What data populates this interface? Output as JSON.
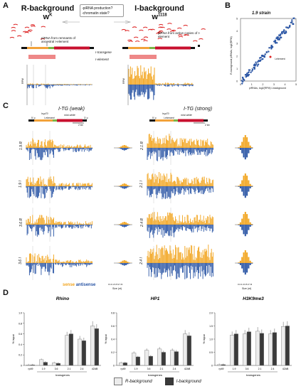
{
  "panelA": {
    "label": "A",
    "r_title": "R-background",
    "r_sub": "w",
    "r_sup": "K",
    "i_title": "I-background",
    "i_sub": "w",
    "i_sup": "1118",
    "question_line1": "-piRNA production?",
    "question_line2": "-chromatin state?",
    "r_note": "piRNA from remnants of ancestral I-element",
    "i_note": "piRNA from active copies of I-element",
    "transgene_label": "I-transgene",
    "element_label": "I-element",
    "rpm": "RPM"
  },
  "panelB": {
    "label": "B",
    "title": "1.9 strain",
    "ylabel": "R-background piRNAs, log2(RPM)",
    "xlabel": "piRNAs, log2(RPM) I-background",
    "annotation": "I-element",
    "ticks": [
      "0",
      "1",
      "2",
      "3",
      "4",
      "5"
    ]
  },
  "panelC": {
    "label": "C",
    "weak_title": "I-TG (weak)",
    "strong_title": "I-TG (strong)",
    "hsp70": "hsp70",
    "five_p": "5' p",
    "i_element": "I-element",
    "mini_white": "mini-white",
    "three_p": "3' p",
    "scale": "2 kb",
    "weak_rows": [
      "1.9 R",
      "1.9 I",
      "3.6 R",
      "3.6 I"
    ],
    "strong_rows": [
      "2.1 R",
      "2.1 I",
      "2.4 R",
      "2.4 I"
    ],
    "size_label": "Size (nt)",
    "size_ticks": "19 21 23 25 27 29",
    "rpm": "RPM",
    "legend_sense": "sense",
    "legend_antisense": "antisense"
  },
  "panelD": {
    "label": "D",
    "ylabel": "% input",
    "xlabel": "transgenes",
    "legend_r": "R-background",
    "legend_i": "I-background",
    "colors": {
      "r": "#ececec",
      "i": "#3a3a3a"
    },
    "chart_data": [
      {
        "type": "bar",
        "title": "Rhino",
        "categories": [
          "rp49",
          "1.9",
          "3.6",
          "2.1",
          "2.4",
          "42AB"
        ],
        "ylim": [
          0,
          1.0
        ],
        "yticks": [
          "0",
          "0.2",
          "0.4",
          "0.6",
          "0.8",
          "1.0"
        ],
        "series": [
          {
            "name": "R-background",
            "values": [
              0.01,
              0.11,
              0.05,
              0.57,
              0.5,
              0.75
            ]
          },
          {
            "name": "I-background",
            "values": [
              0.01,
              0.06,
              0.04,
              0.6,
              0.47,
              0.7
            ]
          }
        ]
      },
      {
        "type": "bar",
        "title": "HP1",
        "categories": [
          "rp49",
          "1.9",
          "3.6",
          "2.1",
          "2.4",
          "42AB"
        ],
        "ylim": [
          0,
          0.8
        ],
        "yticks": [
          "0",
          "0.2",
          "0.4",
          "0.6",
          "0.8"
        ],
        "series": [
          {
            "name": "R-background",
            "values": [
              0.04,
              0.19,
              0.23,
              0.25,
              0.23,
              0.48
            ]
          },
          {
            "name": "I-background",
            "values": [
              0.04,
              0.13,
              0.14,
              0.2,
              0.21,
              0.45
            ]
          }
        ]
      },
      {
        "type": "bar",
        "title": "H3K9me3",
        "categories": [
          "rp49",
          "1.9",
          "3.6",
          "2.1",
          "2.4",
          "42AB"
        ],
        "ylim": [
          0,
          2.0
        ],
        "yticks": [
          "0",
          "0.5",
          "1.0",
          "1.5",
          "2.0"
        ],
        "series": [
          {
            "name": "R-background",
            "values": [
              0.03,
              1.15,
              1.2,
              1.3,
              1.2,
              1.48
            ]
          },
          {
            "name": "I-background",
            "values": [
              0.03,
              1.2,
              1.28,
              1.22,
              1.25,
              1.5
            ]
          }
        ]
      }
    ]
  }
}
